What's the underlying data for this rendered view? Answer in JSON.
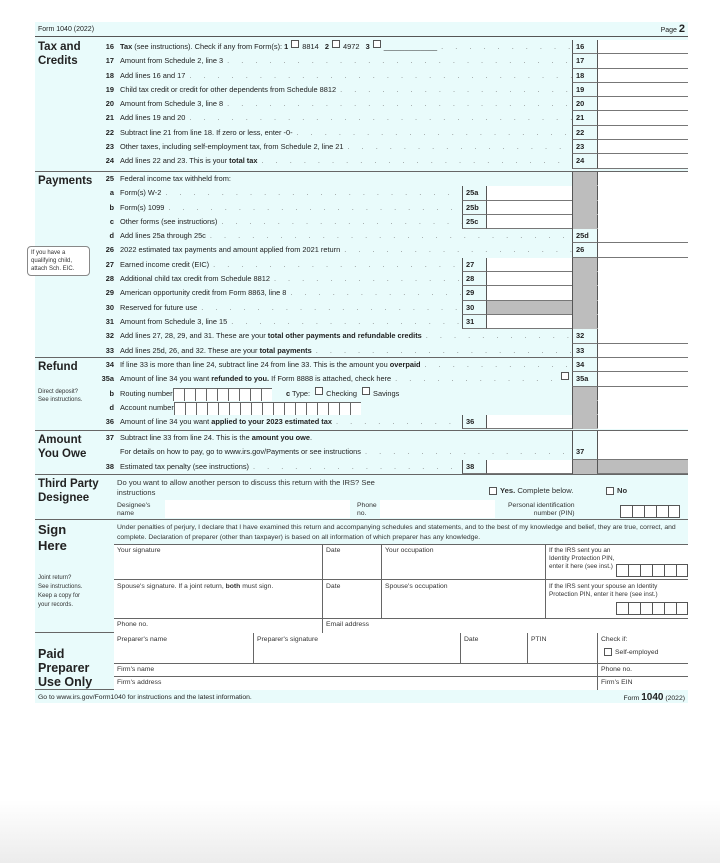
{
  "header": {
    "form_label": "Form 1040 (2022)",
    "page_label": "Page",
    "page_number": "2"
  },
  "tax": {
    "title": [
      "Tax and",
      "Credits"
    ],
    "rows": [
      {
        "n": "16",
        "box": "16",
        "parts": [
          {
            "t": "Tax",
            "b": true
          },
          {
            "t": " (see instructions). Check if any from Form(s): "
          },
          {
            "t": "1",
            "b": true
          },
          {
            "check": true
          },
          {
            "t": "8814   "
          },
          {
            "t": "2",
            "b": true
          },
          {
            "check": true
          },
          {
            "t": "4972   "
          },
          {
            "t": "3",
            "b": true
          },
          {
            "check": true
          },
          {
            "t": "_____________"
          }
        ]
      },
      {
        "n": "17",
        "box": "17",
        "parts": [
          {
            "t": "Amount from Schedule 2, line 3"
          }
        ]
      },
      {
        "n": "18",
        "box": "18",
        "parts": [
          {
            "t": "Add lines 16 and 17"
          }
        ]
      },
      {
        "n": "19",
        "box": "19",
        "parts": [
          {
            "t": "Child tax credit or credit for other dependents from Schedule 8812"
          }
        ]
      },
      {
        "n": "20",
        "box": "20",
        "parts": [
          {
            "t": "Amount from Schedule 3, line 8"
          }
        ]
      },
      {
        "n": "21",
        "box": "21",
        "parts": [
          {
            "t": "Add lines 19 and 20"
          }
        ]
      },
      {
        "n": "22",
        "box": "22",
        "parts": [
          {
            "t": "Subtract line 21 from line 18. If zero or less, enter -0-"
          }
        ]
      },
      {
        "n": "23",
        "box": "23",
        "parts": [
          {
            "t": "Other taxes, including self-employment tax, from Schedule 2, line 21"
          }
        ]
      },
      {
        "n": "24",
        "box": "24",
        "parts": [
          {
            "t": "Add lines 22 and 23. This is your "
          },
          {
            "t": "total tax",
            "b": true
          }
        ]
      }
    ]
  },
  "payments": {
    "title": [
      "Payments"
    ],
    "note": [
      "If you have a",
      "qualifying child,",
      "attach Sch. EIC."
    ],
    "rows": [
      {
        "n": "25",
        "parts": [
          {
            "t": "Federal income tax withheld from:"
          }
        ],
        "shade": true,
        "noLead": true
      },
      {
        "n": "a",
        "sub": true,
        "inner": "25a",
        "parts": [
          {
            "t": "Form(s) W-2"
          }
        ],
        "shade": true
      },
      {
        "n": "b",
        "sub": true,
        "inner": "25b",
        "parts": [
          {
            "t": "Form(s) 1099"
          }
        ],
        "shade": true
      },
      {
        "n": "c",
        "sub": true,
        "inner": "25c",
        "parts": [
          {
            "t": "Other forms (see instructions)"
          }
        ],
        "shade": true
      },
      {
        "n": "d",
        "sub": true,
        "box": "25d",
        "parts": [
          {
            "t": "Add lines 25a through 25c"
          }
        ]
      },
      {
        "n": "26",
        "box": "26",
        "parts": [
          {
            "t": "2022 estimated tax payments and amount applied from 2021 return"
          }
        ]
      },
      {
        "n": "27",
        "inner": "27",
        "parts": [
          {
            "t": "Earned income credit (EIC)"
          }
        ],
        "shade": true
      },
      {
        "n": "28",
        "inner": "28",
        "parts": [
          {
            "t": "Additional child tax credit from Schedule 8812"
          }
        ],
        "shade": true
      },
      {
        "n": "29",
        "inner": "29",
        "parts": [
          {
            "t": "American opportunity credit from Form 8863, line 8"
          }
        ],
        "shade": true
      },
      {
        "n": "30",
        "inner": "30",
        "parts": [
          {
            "t": "Reserved for future use"
          }
        ],
        "shade": true,
        "innerShade": true
      },
      {
        "n": "31",
        "inner": "31",
        "parts": [
          {
            "t": "Amount from Schedule 3, line 15"
          }
        ],
        "shade": true
      },
      {
        "n": "32",
        "box": "32",
        "parts": [
          {
            "t": "Add lines 27, 28, 29, and 31. These are your "
          },
          {
            "t": "total other payments and refundable credits",
            "b": true
          }
        ]
      },
      {
        "n": "33",
        "box": "33",
        "parts": [
          {
            "t": "Add lines 25d, 26, and 32. These are your "
          },
          {
            "t": "total payments",
            "b": true
          }
        ]
      }
    ]
  },
  "refund": {
    "title": [
      "Refund"
    ],
    "note": [
      "Direct deposit?",
      "See instructions."
    ],
    "rows": [
      {
        "n": "34",
        "box": "34",
        "parts": [
          {
            "t": "If line 33 is more than line 24, subtract line 24 from line 33. This is the amount you "
          },
          {
            "t": "overpaid",
            "b": true
          }
        ]
      },
      {
        "n": "35a",
        "box": "35a",
        "parts": [
          {
            "t": "Amount of line 34 you want "
          },
          {
            "t": "refunded to you.",
            "b": true
          },
          {
            "t": " If Form 8888 is attached, check here"
          }
        ],
        "endCheck": true
      },
      {
        "n": "b",
        "sub": true,
        "shade": true,
        "noLead": true,
        "parts": [
          {
            "t": "Routing number"
          },
          {
            "digits": 9
          },
          {
            "t": "       "
          },
          {
            "t": "c",
            "b": true
          },
          {
            "t": " Type: "
          },
          {
            "check": true
          },
          {
            "t": "Checking "
          },
          {
            "check": true
          },
          {
            "t": "Savings"
          }
        ]
      },
      {
        "n": "d",
        "sub": true,
        "shade": true,
        "noLead": true,
        "parts": [
          {
            "t": "Account number"
          },
          {
            "digits": 17
          }
        ]
      },
      {
        "n": "36",
        "inner": "36",
        "shade": true,
        "parts": [
          {
            "t": "Amount of line 34 you want "
          },
          {
            "t": "applied to your 2023 estimated tax",
            "b": true
          }
        ]
      }
    ]
  },
  "owe": {
    "title": [
      "Amount",
      "You Owe"
    ],
    "line37": {
      "n": "37",
      "box": "37",
      "l1_a": "Subtract line 33 from line 24. This is the ",
      "l1_b": "amount you owe",
      "l1_c": ".",
      "l2": "For details on how to pay, go to www.irs.gov/Payments or see instructions"
    },
    "rows": [
      {
        "n": "38",
        "inner": "38",
        "shade": true,
        "boxShade": true,
        "parts": [
          {
            "t": "Estimated tax penalty (see instructions)"
          }
        ]
      }
    ]
  },
  "third_party": {
    "title": [
      "Third Party",
      "Designee"
    ],
    "question": "Do you want to allow another person to discuss this return with the IRS? See",
    "question2": "instructions",
    "yes_b": "Yes.",
    "yes_rest": " Complete below.",
    "no": "No",
    "designee_name": [
      "Designee's",
      "name"
    ],
    "phone": [
      "Phone",
      "no."
    ],
    "pin": [
      "Personal identification",
      "number (PIN)"
    ]
  },
  "sign": {
    "title": [
      "Sign",
      "Here"
    ],
    "declaration": "Under penalties of perjury, I declare that I have examined this return and accompanying schedules and statements, and to the best of my knowledge and belief, they are true, correct, and complete. Declaration of preparer (other than taxpayer) is based on all information of which preparer has any knowledge.",
    "note": [
      "Joint return?",
      "See instructions.",
      "Keep a copy for",
      "your records."
    ],
    "your_signature": "Your signature",
    "date": "Date",
    "your_occupation": "Your occupation",
    "ip_pin": "If the IRS sent you an Identity Protection PIN, enter it here (see inst.)",
    "spouse_signature_a": "Spouse's signature. If a joint return, ",
    "spouse_signature_b": "both",
    "spouse_signature_c": " must sign.",
    "spouse_occupation": "Spouse's occupation",
    "spouse_ip_pin": "If the IRS sent your spouse an Identity Protection PIN, enter it here (see inst.)",
    "phone": "Phone no.",
    "email": "Email address"
  },
  "preparer": {
    "title": [
      "Paid",
      "Preparer",
      "Use Only"
    ],
    "name": "Preparer's name",
    "signature": "Preparer's signature",
    "date": "Date",
    "ptin": "PTIN",
    "check_if": "Check if:",
    "self_employed": "Self-employed",
    "firm_name": "Firm's name",
    "phone": "Phone no.",
    "firm_address": "Firm's address",
    "firm_ein": "Firm's EIN"
  },
  "footer": {
    "left": "Go to www.irs.gov/Form1040 for instructions and the latest information.",
    "form_word": "Form",
    "form_number": "1040",
    "year": "(2022)"
  }
}
